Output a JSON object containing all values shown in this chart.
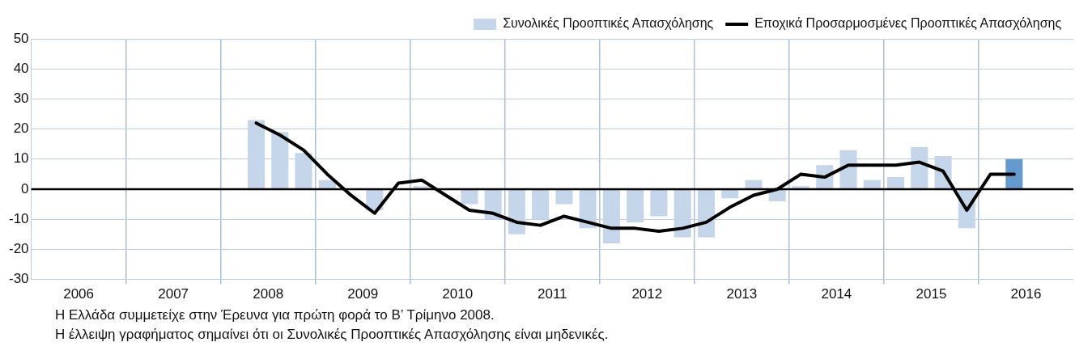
{
  "chart_data": {
    "type": "bar",
    "x": [
      2008.375,
      2008.625,
      2008.875,
      2009.125,
      2009.375,
      2009.625,
      2009.875,
      2010.125,
      2010.375,
      2010.625,
      2010.875,
      2011.125,
      2011.375,
      2011.625,
      2011.875,
      2012.125,
      2012.375,
      2012.625,
      2012.875,
      2013.125,
      2013.375,
      2013.625,
      2013.875,
      2014.125,
      2014.375,
      2014.625,
      2014.875,
      2015.125,
      2015.375,
      2015.625,
      2015.875,
      2016.125,
      2016.375
    ],
    "series": [
      {
        "name": "Συνολικές Προοπτικές Απασχόλησης",
        "color": "#c5d5ea",
        "colors": [
          "#c5d5ea",
          "#c5d5ea",
          "#c5d5ea",
          "#c5d5ea",
          "#c5d5ea",
          "#c5d5ea",
          "#c5d5ea",
          "#c5d5ea",
          "#c5d5ea",
          "#c5d5ea",
          "#c5d5ea",
          "#c5d5ea",
          "#c5d5ea",
          "#c5d5ea",
          "#c5d5ea",
          "#c5d5ea",
          "#c5d5ea",
          "#c5d5ea",
          "#c5d5ea",
          "#c5d5ea",
          "#c5d5ea",
          "#c5d5ea",
          "#c5d5ea",
          "#c5d5ea",
          "#c5d5ea",
          "#c5d5ea",
          "#c5d5ea",
          "#c5d5ea",
          "#c5d5ea",
          "#c5d5ea",
          "#c5d5ea",
          "#c5d5ea",
          "#6699cc"
        ],
        "values": [
          23,
          19,
          12,
          3,
          0,
          -7,
          0,
          1,
          0,
          -5,
          -10,
          -15,
          -10,
          -5,
          -13,
          -18,
          -11,
          -9,
          -16,
          -16,
          -3,
          3,
          -4,
          1,
          8,
          13,
          3,
          4,
          14,
          11,
          -13,
          0,
          10
        ]
      },
      {
        "name": "Εποχικά Προσαρμοσμένες Προοπτικές Απασχόλησης",
        "type": "line",
        "color": "#000000",
        "values": [
          22,
          18,
          13,
          5,
          -2,
          -8,
          2,
          3,
          -2,
          -7,
          -8,
          -11,
          -12,
          -9,
          -11,
          -13,
          -13,
          -14,
          -13,
          -11,
          -6,
          -2,
          0,
          5,
          4,
          8,
          8,
          8,
          9,
          6,
          -7,
          5,
          5
        ]
      }
    ],
    "xlim": [
      2006,
      2017
    ],
    "xticks": [
      {
        "value": 2006.5,
        "label": "2006"
      },
      {
        "value": 2007,
        "label": null
      },
      {
        "value": 2007.5,
        "label": "2007"
      },
      {
        "value": 2008,
        "label": null
      },
      {
        "value": 2008.5,
        "label": "2008"
      },
      {
        "value": 2009,
        "label": null
      },
      {
        "value": 2009.5,
        "label": "2009"
      },
      {
        "value": 2010,
        "label": null
      },
      {
        "value": 2010.5,
        "label": "2010"
      },
      {
        "value": 2011,
        "label": null
      },
      {
        "value": 2011.5,
        "label": "2011"
      },
      {
        "value": 2012,
        "label": null
      },
      {
        "value": 2012.5,
        "label": "2012"
      },
      {
        "value": 2013,
        "label": null
      },
      {
        "value": 2013.5,
        "label": "2013"
      },
      {
        "value": 2014,
        "label": null
      },
      {
        "value": 2014.5,
        "label": "2014"
      },
      {
        "value": 2015,
        "label": null
      },
      {
        "value": 2015.5,
        "label": "2015"
      },
      {
        "value": 2016,
        "label": null
      },
      {
        "value": 2016.5,
        "label": "2016"
      }
    ],
    "ylim": [
      -30,
      50
    ],
    "yticks": [
      -30,
      -20,
      -10,
      0,
      10,
      20,
      30,
      40,
      50
    ],
    "grid": true,
    "legend": "top right",
    "marker": "none",
    "line_style": "solid",
    "ref_lines": [
      {
        "axis": "y",
        "value": 0,
        "color": "#000000"
      }
    ],
    "annotations": [
      "Η Ελλάδα συμμετείχε στην Έρευνα για πρώτη φορά το Β’ Τρίμηνο 2008.",
      "Η έλλειψη γραφήματος σημαίνει ότι οι Συνολικές Προοπτικές Απασχόλησης είναι μηδενικές."
    ]
  }
}
